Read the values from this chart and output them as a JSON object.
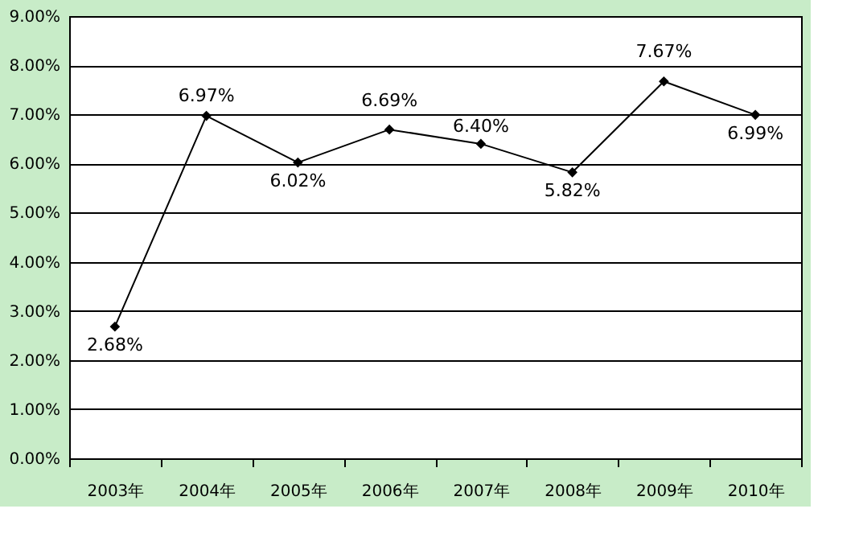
{
  "chart_data": {
    "type": "line",
    "categories": [
      "2003年",
      "2004年",
      "2005年",
      "2006年",
      "2007年",
      "2008年",
      "2009年",
      "2010年"
    ],
    "series": [
      {
        "color": "#000000",
        "values": [
          2.68,
          6.97,
          6.02,
          6.69,
          6.4,
          5.82,
          7.67,
          6.99
        ],
        "value_labels": [
          "2.68%",
          "6.97%",
          "6.02%",
          "6.69%",
          "6.40%",
          "5.82%",
          "7.67%",
          "6.99%"
        ]
      }
    ],
    "ylim": [
      0,
      9
    ],
    "yticks": [
      {
        "value": 0,
        "label": "0.00%"
      },
      {
        "value": 1,
        "label": "1.00%"
      },
      {
        "value": 2,
        "label": "2.00%"
      },
      {
        "value": 3,
        "label": "3.00%"
      },
      {
        "value": 4,
        "label": "4.00%"
      },
      {
        "value": 5,
        "label": "5.00%"
      },
      {
        "value": 6,
        "label": "6.00%"
      },
      {
        "value": 7,
        "label": "7.00%"
      },
      {
        "value": 8,
        "label": "8.00%"
      },
      {
        "value": 9,
        "label": "9.00%"
      }
    ],
    "grid": "y",
    "marker": "diamond",
    "line_style": "solid"
  }
}
